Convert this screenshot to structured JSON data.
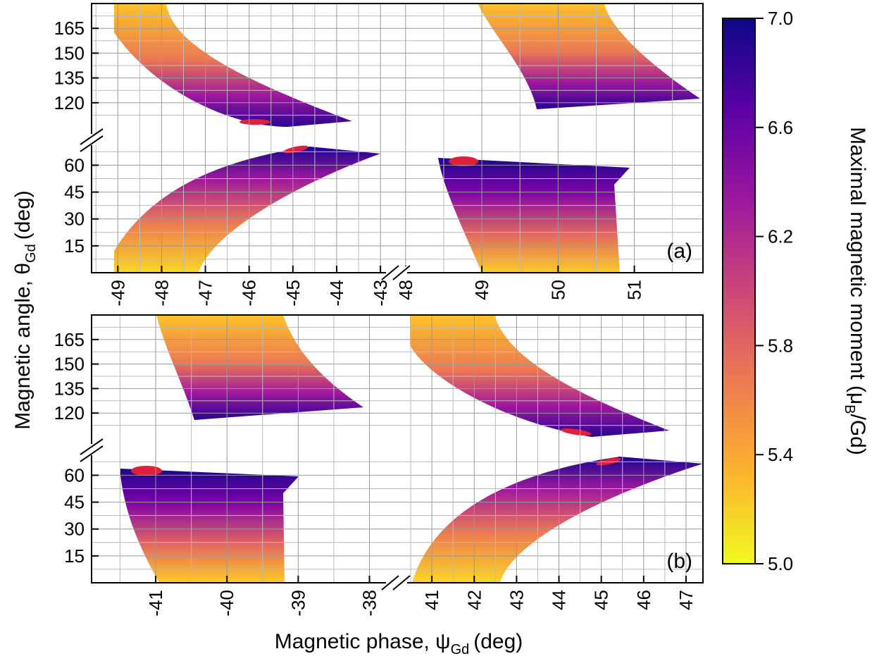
{
  "chart_data": {
    "type": "heatmap",
    "ylabel": "Magnetic angle, θ",
    "ylabel_sub": "Gd",
    "ylabel_unit": "(deg)",
    "xlabel": "Magnetic phase, ψ",
    "xlabel_sub": "Gd",
    "xlabel_unit": "(deg)",
    "colorbar": {
      "label_pre": "Maximal magnetic moment (μ",
      "label_sub": "B",
      "label_post": "/Gd)",
      "min": 5.0,
      "max": 7.0,
      "ticks": [
        "5.0",
        "5.4",
        "5.8",
        "6.2",
        "6.6",
        "7.0"
      ],
      "colormap": "plasma",
      "colors": [
        "#f0f921",
        "#fdb32f",
        "#ed7953",
        "#cc4778",
        "#9c179e",
        "#5c01a6",
        "#0d0887"
      ]
    },
    "panels": [
      {
        "label": "(a)",
        "x_left": {
          "range": [
            -49.6,
            -42.6
          ],
          "ticks": [
            "-49",
            "-48",
            "-47",
            "-46",
            "-45",
            "-44",
            "-43"
          ]
        },
        "x_right": {
          "range": [
            47.9,
            51.9
          ],
          "ticks": [
            "48",
            "49",
            "50",
            "51"
          ]
        },
        "y_upper": {
          "range": [
            105,
            180
          ],
          "ticks": [
            "120",
            "135",
            "150",
            "165"
          ]
        },
        "y_lower": {
          "range": [
            0,
            70
          ],
          "ticks": [
            "15",
            "30",
            "45",
            "60"
          ]
        },
        "maxima": [
          {
            "psi": -46.0,
            "theta": 117,
            "value": 7.0
          },
          {
            "psi": -45.0,
            "theta": 61,
            "value": 7.0
          },
          {
            "psi": 48.7,
            "theta": 55,
            "value": 7.0
          }
        ]
      },
      {
        "label": "(b)",
        "x_left": {
          "range": [
            -41.9,
            -37.6
          ],
          "ticks": [
            "-41",
            "-40",
            "-39",
            "-38"
          ]
        },
        "x_right": {
          "range": [
            40.2,
            47.4
          ],
          "ticks": [
            "41",
            "42",
            "43",
            "44",
            "45",
            "46",
            "47"
          ]
        },
        "y_upper": {
          "range": [
            105,
            180
          ],
          "ticks": [
            "120",
            "135",
            "150",
            "165"
          ]
        },
        "y_lower": {
          "range": [
            0,
            70
          ],
          "ticks": [
            "15",
            "30",
            "45",
            "60"
          ]
        },
        "maxima": [
          {
            "psi": -41.3,
            "theta": 55,
            "value": 7.0
          },
          {
            "psi": 44.3,
            "theta": 117,
            "value": 7.0
          },
          {
            "psi": 45.2,
            "theta": 61,
            "value": 7.0
          }
        ]
      }
    ]
  }
}
